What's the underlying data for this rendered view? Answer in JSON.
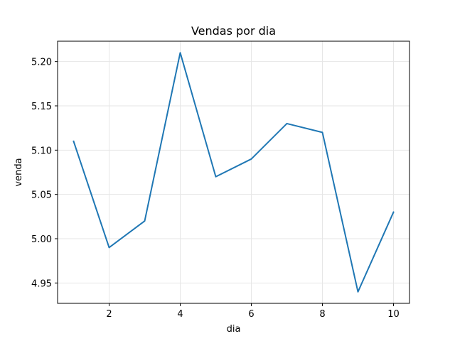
{
  "chart_data": {
    "type": "line",
    "title": "Vendas por dia",
    "xlabel": "dia",
    "ylabel": "venda",
    "x": [
      1,
      2,
      3,
      4,
      5,
      6,
      7,
      8,
      9,
      10
    ],
    "series": [
      {
        "values": [
          5.11,
          4.99,
          5.02,
          5.21,
          5.07,
          5.09,
          5.13,
          5.12,
          4.94,
          5.03
        ]
      }
    ],
    "xlim": [
      0.55,
      10.45
    ],
    "ylim": [
      4.927,
      5.223
    ],
    "xticks": [
      2,
      4,
      6,
      8,
      10
    ],
    "xtick_labels": [
      "2",
      "4",
      "6",
      "8",
      "10"
    ],
    "yticks": [
      4.95,
      5.0,
      5.05,
      5.1,
      5.15,
      5.2
    ],
    "ytick_labels": [
      "4.95",
      "5.00",
      "5.05",
      "5.10",
      "5.15",
      "5.20"
    ],
    "grid": true,
    "line_color": "#1f77b4",
    "grid_color": "#e6e6e6"
  }
}
